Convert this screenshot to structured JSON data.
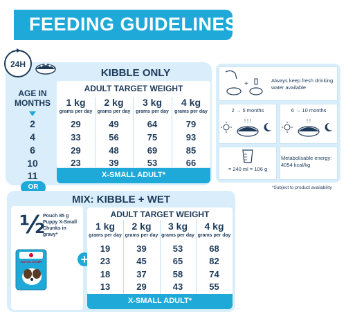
{
  "header": {
    "title": "FEEDING GUIDELINES"
  },
  "badge": {
    "label": "24H"
  },
  "kibble": {
    "title": "KIBBLE ONLY",
    "subtitle": "ADULT TARGET WEIGHT",
    "age_label_line1": "AGE IN",
    "age_label_line2": "MONTHS",
    "weights": [
      "1 kg",
      "2 kg",
      "3 kg",
      "4 kg"
    ],
    "unit": "grams per day",
    "ages": [
      "2",
      "4",
      "6",
      "10",
      "11"
    ],
    "rows": [
      [
        "29",
        "49",
        "64",
        "79"
      ],
      [
        "33",
        "56",
        "75",
        "93"
      ],
      [
        "29",
        "48",
        "69",
        "85"
      ],
      [
        "23",
        "39",
        "53",
        "66"
      ]
    ],
    "footer": "X-SMALL ADULT*"
  },
  "or_label": "OR",
  "mix": {
    "title": "MIX: KIBBLE + WET",
    "subtitle": "ADULT TARGET WEIGHT",
    "fraction": "½",
    "pouch_text": "Pouch 85 g Puppy X-Small Chunks in gravy*",
    "brand": "ROYAL CANIN",
    "weights": [
      "1 kg",
      "2 kg",
      "3 kg",
      "4 kg"
    ],
    "unit": "grams per day",
    "rows": [
      [
        "19",
        "39",
        "53",
        "68"
      ],
      [
        "23",
        "45",
        "65",
        "82"
      ],
      [
        "18",
        "37",
        "58",
        "74"
      ],
      [
        "13",
        "29",
        "43",
        "55"
      ]
    ],
    "footer": "X-SMALL ADULT*"
  },
  "info": {
    "water_text": "Always keep fresh drinking water available",
    "meals_1_label": "2 → 5 months",
    "meals_2_label": "6 → 10 months",
    "cup_text": "= 240 ml = 106 g",
    "energy_text": "Metabolisable energy: 4054 kcal/kg"
  },
  "footnote": "*Subject to product availability",
  "colors": {
    "accent": "#1fa9d8",
    "panel": "#d9eefa",
    "text": "#1e3a5a"
  }
}
